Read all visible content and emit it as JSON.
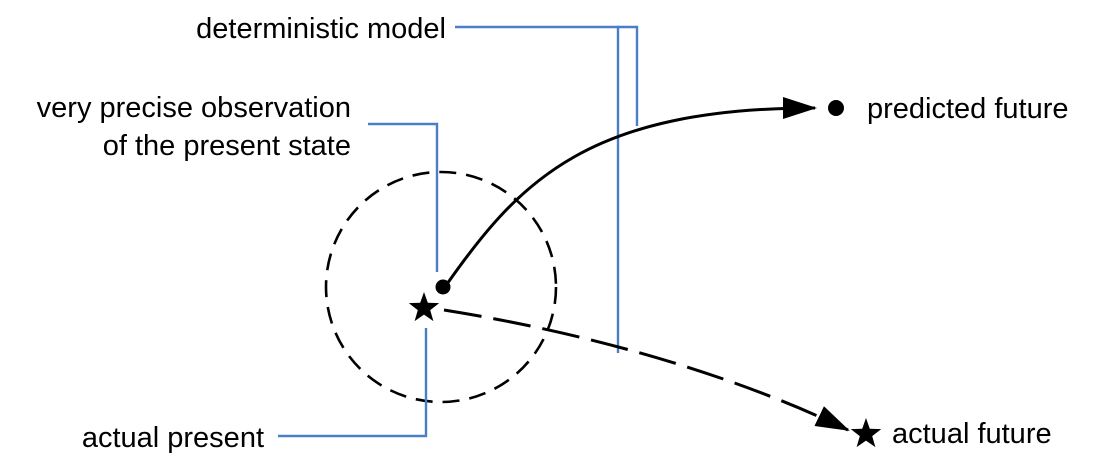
{
  "labels": {
    "deterministic_model": "deterministic model",
    "observation_line1": "very precise observation",
    "observation_line2": "of the present state",
    "predicted_future": "predicted future",
    "actual_present": "actual present",
    "actual_future": "actual future"
  },
  "colors": {
    "leader": "#4a7fc8",
    "ink": "#000000",
    "background": "#ffffff"
  },
  "icons": {
    "observed_state": "filled-dot",
    "actual_state": "star"
  }
}
